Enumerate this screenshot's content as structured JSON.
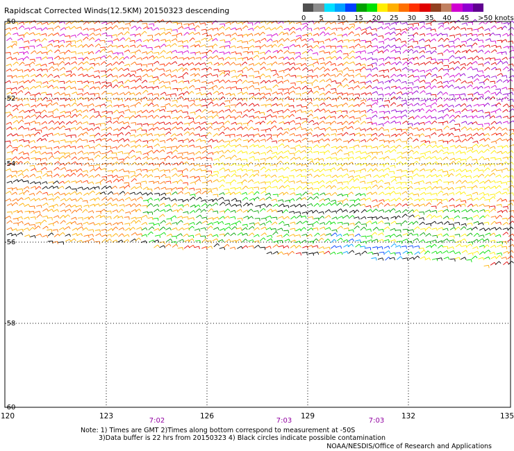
{
  "title": "Rapidscat Corrected Winds(12.5KM) 20150323 descending",
  "colorbar": {
    "colors": [
      "#505050",
      "#8c8c8c",
      "#00e0ff",
      "#00a0ff",
      "#0040ff",
      "#00a000",
      "#00e000",
      "#ffee00",
      "#ffb000",
      "#ff7000",
      "#ff3000",
      "#e00000",
      "#904020",
      "#c08060",
      "#d000d0",
      "#9000d0",
      "#600090"
    ],
    "labels": [
      "0",
      "5",
      "10",
      "15",
      "20",
      "25",
      "30",
      "35",
      "40",
      "45",
      ">50 knots"
    ]
  },
  "axes": {
    "y_labels": [
      "-50",
      "-52",
      "-54",
      "-56",
      "-58",
      "-60"
    ],
    "x_labels": [
      "120",
      "123",
      "126",
      "129",
      "132",
      "135"
    ]
  },
  "times": [
    "7:02",
    "7:03",
    "7:03"
  ],
  "notes": {
    "line1": "Note: 1) Times are GMT 2)Times along bottom correspond to measurement at -50S",
    "line2": "3)Data buffer is 22 hrs from 20150323 4) Black circles indicate possible contamination",
    "credit": "NOAA/NESDIS/Office of Research and Applications"
  },
  "colors": {
    "time_label": "#9000a0",
    "grid": "#000000",
    "contamination": "#000000"
  }
}
